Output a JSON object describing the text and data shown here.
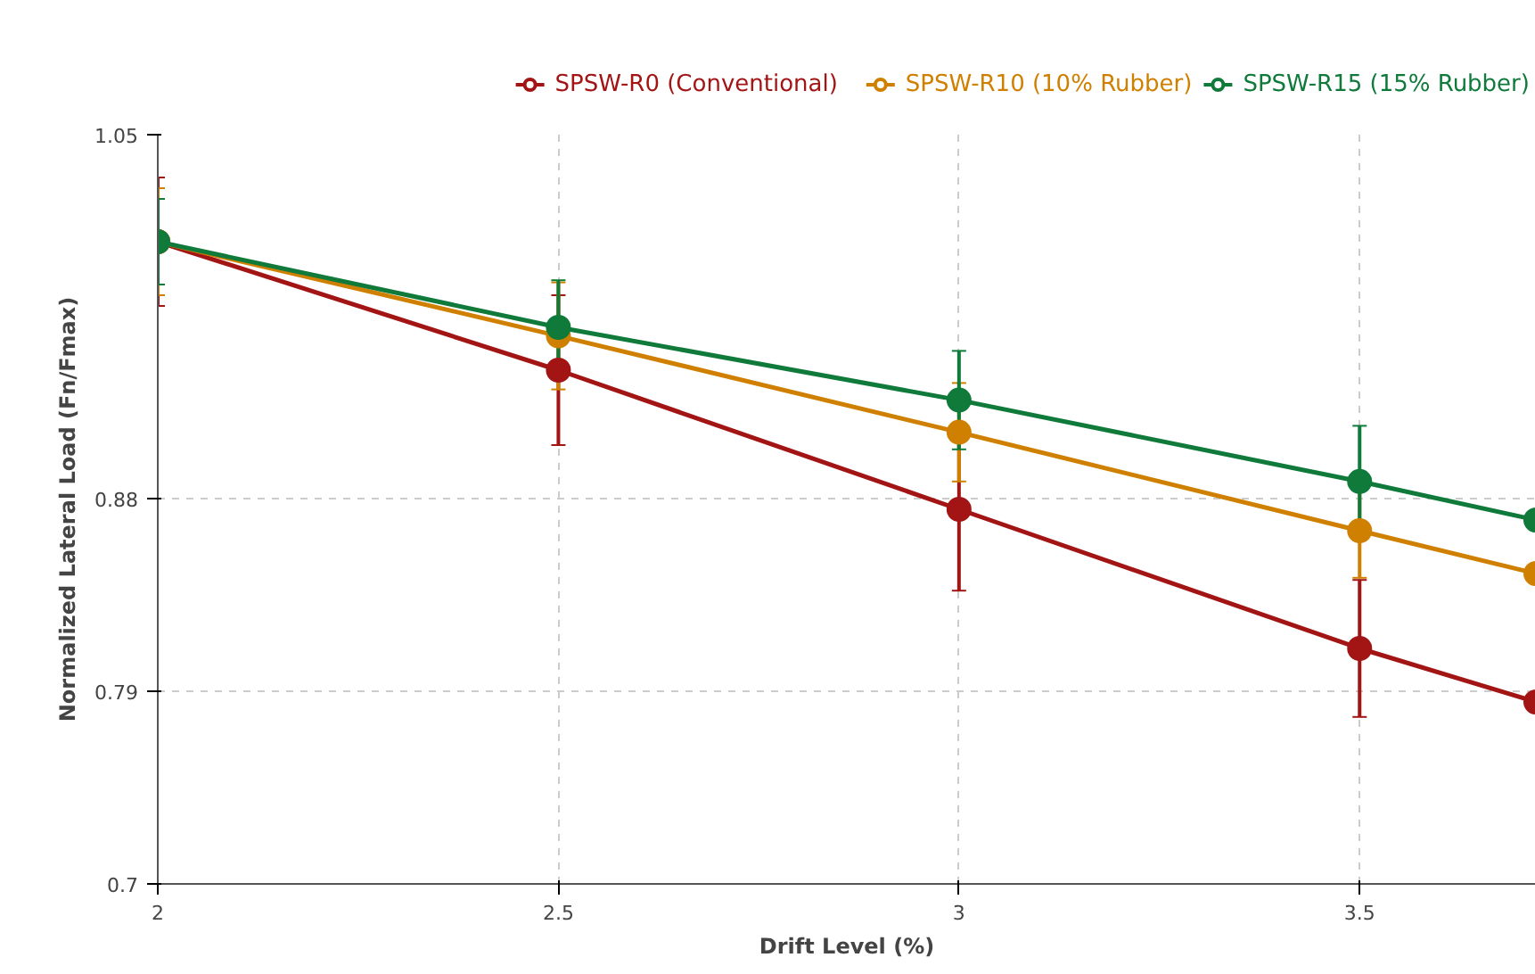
{
  "chart_data": {
    "type": "line",
    "xlabel": "Drift Level (%)",
    "ylabel": "Normalized Lateral Load (Fn/Fmax)",
    "xlim": [
      2,
      3.72
    ],
    "ylim": [
      0.7,
      1.05
    ],
    "xticks": [
      2,
      2.5,
      3,
      3.5
    ],
    "yticks": [
      0.7,
      0.79,
      0.88,
      1.05
    ],
    "grid": true,
    "legend": "top right",
    "marker": "circle",
    "line_style": "solid",
    "series": [
      {
        "name": "SPSW-R0 (Conventional)",
        "color": "#a31515",
        "x": [
          2,
          2.5,
          3,
          3.5,
          3.72
        ],
        "values": [
          1.0,
          0.94,
          0.875,
          0.81,
          0.785
        ],
        "errors": [
          0.03,
          0.035,
          0.038,
          0.032,
          null
        ]
      },
      {
        "name": "SPSW-R10 (10% Rubber)",
        "color": "#d08000",
        "x": [
          2,
          2.5,
          3,
          3.5,
          3.72
        ],
        "values": [
          1.0,
          0.956,
          0.911,
          0.865,
          0.845
        ],
        "errors": [
          0.025,
          0.025,
          0.023,
          0.022,
          null
        ]
      },
      {
        "name": "SPSW-R15 (15% Rubber)",
        "color": "#0f7a3a",
        "x": [
          2,
          2.5,
          3,
          3.5,
          3.72
        ],
        "values": [
          1.0,
          0.96,
          0.926,
          0.888,
          0.87
        ],
        "errors": [
          0.02,
          0.022,
          0.023,
          0.026,
          null
        ]
      }
    ]
  }
}
